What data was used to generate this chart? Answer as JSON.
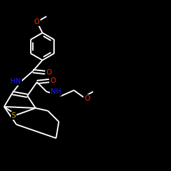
{
  "bg_color": "#000000",
  "bond_color": "#ffffff",
  "atom_colors": {
    "O": "#ff2200",
    "N": "#1a1aff",
    "S": "#ccaa00",
    "C": "#ffffff",
    "H": "#ffffff"
  },
  "figsize": [
    2.5,
    2.5
  ],
  "dpi": 100
}
